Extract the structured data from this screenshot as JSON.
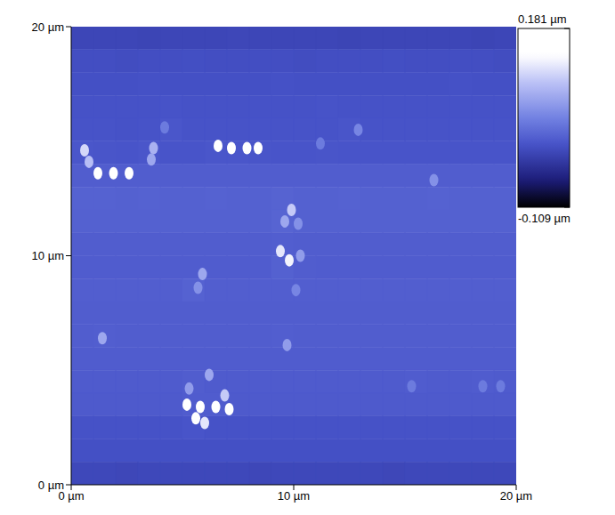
{
  "chart_data": {
    "type": "heatmap",
    "x": [
      0.5,
      1.5,
      2.5,
      3.5,
      4.5,
      5.5,
      6.5,
      7.5,
      8.5,
      9.5,
      10.5,
      11.5,
      12.5,
      13.5,
      14.5,
      15.5,
      16.5,
      17.5,
      18.5,
      19.5
    ],
    "y": [
      19.5,
      18.5,
      17.5,
      16.5,
      15.5,
      14.5,
      13.5,
      12.5,
      11.5,
      10.5,
      9.5,
      8.5,
      7.5,
      6.5,
      5.5,
      4.5,
      3.5,
      2.5,
      1.5,
      0.5
    ],
    "cells": [
      [
        -0.02,
        -0.02,
        -0.02,
        -0.021,
        -0.02,
        -0.02,
        -0.02,
        -0.019,
        -0.02,
        -0.02,
        -0.02,
        -0.02,
        -0.021,
        -0.02,
        -0.02,
        -0.02,
        -0.02,
        -0.02,
        -0.021,
        -0.02
      ],
      [
        -0.012,
        -0.012,
        -0.013,
        -0.012,
        -0.012,
        -0.011,
        -0.012,
        -0.012,
        -0.012,
        -0.012,
        -0.013,
        -0.012,
        -0.012,
        -0.012,
        -0.011,
        -0.012,
        -0.012,
        -0.012,
        -0.012,
        -0.013
      ],
      [
        -0.01,
        -0.01,
        -0.01,
        -0.009,
        -0.01,
        -0.01,
        -0.01,
        -0.01,
        -0.01,
        -0.009,
        -0.01,
        -0.01,
        -0.01,
        -0.01,
        -0.01,
        -0.01,
        -0.01,
        -0.009,
        -0.01,
        -0.01
      ],
      [
        -0.008,
        -0.008,
        -0.008,
        -0.008,
        -0.007,
        -0.008,
        -0.008,
        -0.008,
        -0.008,
        -0.008,
        -0.008,
        -0.007,
        -0.008,
        -0.008,
        -0.008,
        -0.008,
        -0.008,
        -0.008,
        -0.008,
        -0.008
      ],
      [
        -0.007,
        -0.007,
        -0.008,
        -0.007,
        -0.004,
        -0.007,
        -0.007,
        -0.007,
        -0.007,
        -0.007,
        -0.007,
        -0.007,
        -0.005,
        -0.007,
        -0.007,
        -0.007,
        -0.007,
        -0.007,
        -0.007,
        -0.007
      ],
      [
        -0.004,
        -0.005,
        -0.006,
        -0.004,
        -0.006,
        -0.006,
        -0.004,
        -0.004,
        -0.005,
        -0.006,
        -0.006,
        -0.005,
        -0.006,
        -0.006,
        -0.006,
        -0.006,
        -0.006,
        -0.006,
        -0.006,
        -0.006
      ],
      [
        0.003,
        0.003,
        0.003,
        0.003,
        0.003,
        0.003,
        0.003,
        0.003,
        0.003,
        0.003,
        0.003,
        0.003,
        0.003,
        0.003,
        0.003,
        0.003,
        0.003,
        0.003,
        0.003,
        0.003
      ],
      [
        0.007,
        0.007,
        0.006,
        0.007,
        0.006,
        0.006,
        0.007,
        0.006,
        0.006,
        0.008,
        0.006,
        0.006,
        0.007,
        0.006,
        0.006,
        0.006,
        0.007,
        0.006,
        0.006,
        0.006
      ],
      [
        0.006,
        0.006,
        0.006,
        0.006,
        0.006,
        0.006,
        0.006,
        0.006,
        0.006,
        0.009,
        0.006,
        0.006,
        0.006,
        0.006,
        0.006,
        0.006,
        0.006,
        0.006,
        0.006,
        0.006
      ],
      [
        0.003,
        0.003,
        0.003,
        0.003,
        0.003,
        0.003,
        0.003,
        0.003,
        0.003,
        0.004,
        0.003,
        0.003,
        0.003,
        0.003,
        0.003,
        0.003,
        0.003,
        0.003,
        0.003,
        0.003
      ],
      [
        0.002,
        0.002,
        0.002,
        0.002,
        0.002,
        0.002,
        0.002,
        0.002,
        0.002,
        0.006,
        0.003,
        0.002,
        0.002,
        0.002,
        0.002,
        0.002,
        0.002,
        0.002,
        0.002,
        0.002
      ],
      [
        0.004,
        0.004,
        0.004,
        0.004,
        0.004,
        0.007,
        0.004,
        0.004,
        0.004,
        0.004,
        0.004,
        0.004,
        0.004,
        0.004,
        0.004,
        0.004,
        0.004,
        0.004,
        0.004,
        0.004
      ],
      [
        0.003,
        0.003,
        0.003,
        0.003,
        0.003,
        0.003,
        0.003,
        0.003,
        0.003,
        0.003,
        0.003,
        0.003,
        0.003,
        0.003,
        0.003,
        0.003,
        0.003,
        0.003,
        0.003,
        0.003
      ],
      [
        0.003,
        0.004,
        0.003,
        0.003,
        0.003,
        0.003,
        0.003,
        0.003,
        0.003,
        0.004,
        0.003,
        0.003,
        0.003,
        0.003,
        0.003,
        0.003,
        0.003,
        0.003,
        0.003,
        0.003
      ],
      [
        0.002,
        0.002,
        0.002,
        0.002,
        0.002,
        0.002,
        0.002,
        0.002,
        0.002,
        0.002,
        0.002,
        0.002,
        0.002,
        0.002,
        0.002,
        0.002,
        0.002,
        0.002,
        0.002,
        0.002
      ],
      [
        0.001,
        0.001,
        0.001,
        0.001,
        0.001,
        0.003,
        0.001,
        0.001,
        0.001,
        0.001,
        0.001,
        0.001,
        0.001,
        0.001,
        0.001,
        0.002,
        0.001,
        0.001,
        0.002,
        0.001
      ],
      [
        0.0,
        0.0,
        0.0,
        0.0,
        0.0,
        0.002,
        0.002,
        0.0,
        0.0,
        0.0,
        0.0,
        0.0,
        0.0,
        0.0,
        0.0,
        0.0,
        0.0,
        0.0,
        0.0,
        0.0
      ],
      [
        -0.008,
        -0.008,
        -0.008,
        -0.008,
        -0.008,
        -0.006,
        -0.008,
        -0.008,
        -0.008,
        -0.008,
        -0.008,
        -0.008,
        -0.008,
        -0.008,
        -0.008,
        -0.008,
        -0.008,
        -0.008,
        -0.008,
        -0.008
      ],
      [
        -0.01,
        -0.01,
        -0.01,
        -0.01,
        -0.01,
        -0.01,
        -0.01,
        -0.01,
        -0.01,
        -0.01,
        -0.01,
        -0.01,
        -0.01,
        -0.01,
        -0.01,
        -0.01,
        -0.01,
        -0.01,
        -0.01,
        -0.01
      ],
      [
        -0.018,
        -0.018,
        -0.019,
        -0.018,
        -0.018,
        -0.018,
        -0.018,
        -0.018,
        -0.019,
        -0.018,
        -0.018,
        -0.018,
        -0.018,
        -0.018,
        -0.019,
        -0.018,
        -0.018,
        -0.018,
        -0.018,
        -0.018
      ]
    ],
    "spots": [
      {
        "x": 0.6,
        "y": 14.6,
        "value": 0.11
      },
      {
        "x": 0.8,
        "y": 14.1,
        "value": 0.09
      },
      {
        "x": 3.7,
        "y": 14.7,
        "value": 0.08
      },
      {
        "x": 3.6,
        "y": 14.2,
        "value": 0.07
      },
      {
        "x": 6.6,
        "y": 14.8,
        "value": 0.16
      },
      {
        "x": 7.2,
        "y": 14.7,
        "value": 0.17
      },
      {
        "x": 7.9,
        "y": 14.7,
        "value": 0.16
      },
      {
        "x": 8.4,
        "y": 14.7,
        "value": 0.15
      },
      {
        "x": 1.2,
        "y": 13.6,
        "value": 0.15
      },
      {
        "x": 1.9,
        "y": 13.6,
        "value": 0.15
      },
      {
        "x": 2.6,
        "y": 13.6,
        "value": 0.15
      },
      {
        "x": 4.2,
        "y": 15.6,
        "value": 0.03
      },
      {
        "x": 11.2,
        "y": 14.9,
        "value": 0.03
      },
      {
        "x": 12.9,
        "y": 15.5,
        "value": 0.04
      },
      {
        "x": 9.9,
        "y": 12.0,
        "value": 0.1
      },
      {
        "x": 9.6,
        "y": 11.5,
        "value": 0.07
      },
      {
        "x": 10.2,
        "y": 11.4,
        "value": 0.05
      },
      {
        "x": 9.4,
        "y": 10.2,
        "value": 0.12
      },
      {
        "x": 9.8,
        "y": 9.8,
        "value": 0.13
      },
      {
        "x": 10.3,
        "y": 10.0,
        "value": 0.06
      },
      {
        "x": 5.9,
        "y": 9.2,
        "value": 0.07
      },
      {
        "x": 5.7,
        "y": 8.6,
        "value": 0.05
      },
      {
        "x": 10.1,
        "y": 8.5,
        "value": 0.04
      },
      {
        "x": 16.3,
        "y": 13.3,
        "value": 0.05
      },
      {
        "x": 9.7,
        "y": 6.1,
        "value": 0.06
      },
      {
        "x": 1.4,
        "y": 6.4,
        "value": 0.07
      },
      {
        "x": 6.2,
        "y": 4.8,
        "value": 0.07
      },
      {
        "x": 5.3,
        "y": 4.2,
        "value": 0.06
      },
      {
        "x": 6.9,
        "y": 3.9,
        "value": 0.1
      },
      {
        "x": 5.2,
        "y": 3.5,
        "value": 0.15
      },
      {
        "x": 5.8,
        "y": 3.4,
        "value": 0.17
      },
      {
        "x": 6.5,
        "y": 3.4,
        "value": 0.16
      },
      {
        "x": 7.1,
        "y": 3.3,
        "value": 0.15
      },
      {
        "x": 5.6,
        "y": 2.9,
        "value": 0.14
      },
      {
        "x": 6.0,
        "y": 2.7,
        "value": 0.12
      },
      {
        "x": 15.3,
        "y": 4.3,
        "value": 0.03
      },
      {
        "x": 18.5,
        "y": 4.3,
        "value": 0.03
      },
      {
        "x": 19.3,
        "y": 4.3,
        "value": 0.03
      }
    ],
    "xlim": [
      0,
      20
    ],
    "ylim": [
      0,
      20
    ],
    "xticks": [
      {
        "value": 0,
        "label": "0 µm"
      },
      {
        "value": 10,
        "label": "10 µm"
      },
      {
        "value": 20,
        "label": "20 µm"
      }
    ],
    "yticks": [
      {
        "value": 0,
        "label": "0 µm"
      },
      {
        "value": 10,
        "label": "10 µm"
      },
      {
        "value": 20,
        "label": "20 µm"
      }
    ],
    "colorbar_range": [
      -0.109,
      0.181
    ],
    "colorbar_ticks": [
      {
        "value": 0.181,
        "label": "0.181 µm"
      },
      {
        "value": -0.109,
        "label": "-0.109 µm"
      }
    ]
  }
}
